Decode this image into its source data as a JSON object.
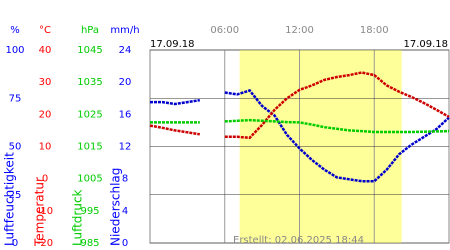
{
  "chart_data": {
    "type": "line",
    "dates": [
      "17.09.18",
      "17.09.18"
    ],
    "footer": "Erstellt: 02.06.2025 18:44",
    "x": [
      0,
      1,
      2,
      3,
      4,
      5,
      6,
      7,
      8,
      9,
      10,
      11,
      12,
      13,
      14,
      15,
      16,
      17,
      18,
      19,
      20,
      21,
      22,
      23,
      24
    ],
    "xlim": [
      0,
      24
    ],
    "xticks": [
      {
        "value": 6,
        "label": "06:00"
      },
      {
        "value": 12,
        "label": "12:00"
      },
      {
        "value": 18,
        "label": "18:00"
      }
    ],
    "shade": [
      7.2,
      20.2
    ],
    "grid": true,
    "axes": [
      {
        "unit": "%",
        "title": "Luftfeuchtigkeit",
        "color": "#0000ff",
        "ylim": [
          0,
          100
        ],
        "yticks": [
          0,
          25,
          50,
          75,
          100
        ]
      },
      {
        "unit": "°C",
        "title": "Temperatur",
        "color": "#ff0000",
        "ylim": [
          -20,
          40
        ],
        "yticks": [
          -20,
          -10,
          0,
          10,
          20,
          30,
          40
        ]
      },
      {
        "unit": "hPa",
        "title": "Luftdruck",
        "color": "#00cc00",
        "ylim": [
          985,
          1045
        ],
        "yticks": [
          985,
          995,
          1005,
          1015,
          1025,
          1035,
          1045
        ]
      },
      {
        "unit": "mm/h",
        "title": "Niederschlag",
        "color": "#0000ff",
        "ylim": [
          0,
          24
        ],
        "yticks": [
          0,
          4,
          8,
          12,
          16,
          20,
          24
        ]
      }
    ],
    "series": [
      {
        "axis": 0,
        "color": "#0000cc",
        "values": [
          73,
          73,
          72,
          73,
          74,
          null,
          78,
          77,
          79,
          71,
          66,
          56,
          49,
          43,
          38,
          34,
          33,
          32,
          32,
          38,
          46,
          51,
          55,
          59,
          65
        ]
      },
      {
        "axis": 1,
        "color": "#cc0000",
        "values": [
          16.5,
          15.8,
          15,
          14.4,
          13.8,
          null,
          13,
          13,
          12.7,
          16.7,
          21.4,
          25,
          27.6,
          29,
          30.7,
          31.6,
          32.2,
          33,
          32.2,
          29,
          27,
          25.4,
          23.5,
          21.4,
          19.2
        ]
      },
      {
        "axis": 2,
        "color": "#00cc00",
        "values": [
          1022.5,
          1022.5,
          1022.5,
          1022.5,
          1022.5,
          null,
          1022.8,
          1023,
          1023.2,
          1023,
          1022.8,
          1022.6,
          1022.5,
          1021.8,
          1021,
          1020.5,
          1020,
          1019.8,
          1019.5,
          1019.5,
          1019.5,
          1019.5,
          1019.6,
          1019.7,
          1019.8
        ]
      }
    ]
  }
}
